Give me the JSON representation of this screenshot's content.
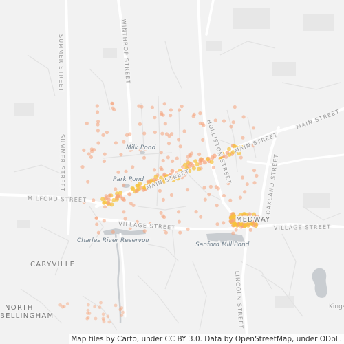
{
  "map": {
    "road_labels": {
      "main_street": "MAIN STREET",
      "milford_street": "MILFORD STREET",
      "village_street": "VILLAGE STREET",
      "summer_street": "SUMMER STREET",
      "winthrop_street": "WINTHROP STREET",
      "holliston_street": "HOLLISTON STREET",
      "oakland_street": "OAKLAND STREET",
      "lincoln_street": "LINCOLN STREET"
    },
    "water_labels": {
      "milk_pond": "Milk Pond",
      "park_pond": "Park Pond",
      "charles_river_reservoir": "Charles River Reservoir",
      "sanford_mill_pond": "Sanford Mill Pond"
    },
    "place_labels": {
      "medway": "MEDWAY",
      "caryville": "CARYVILLE",
      "north_bellingham_line1": "NORTH",
      "north_bellingham_line2": "BELLINGHAM",
      "kings_partial": "Kings"
    },
    "colors": {
      "background": "#f2f2f2",
      "road_major": "#ffffff",
      "road_minor": "#e4e4e4",
      "water": "#c9cdd1",
      "density_low": "#f6a37a",
      "density_high": "#f7c23b"
    },
    "attribution": "Map tiles by Carto, under CC BY 3.0. Data by OpenStreetMap, under ODbL."
  }
}
